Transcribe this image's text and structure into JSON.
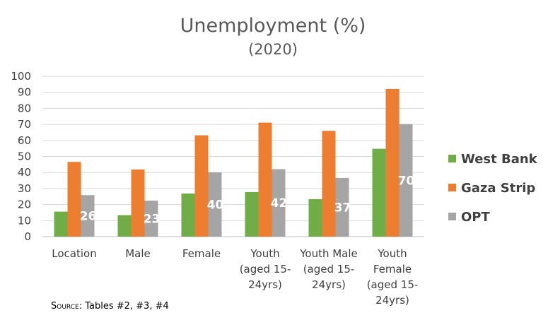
{
  "source_prefix": "Source",
  "source_rest": ": Tables #2, #3, #4",
  "chart_data": {
    "type": "bar",
    "title": "Unemployment (%)",
    "subtitle": "(2020)",
    "categories": [
      [
        "Location"
      ],
      [
        "Male"
      ],
      [
        "Female"
      ],
      [
        "Youth",
        "(aged 15-",
        "24yrs)"
      ],
      [
        "Youth Male",
        "(aged 15-",
        "24yrs)"
      ],
      [
        "Youth",
        "Female",
        "(aged 15-",
        "24yrs)"
      ]
    ],
    "series": [
      {
        "name": "West Bank",
        "color": "#70ad47",
        "values": [
          15.6,
          13.4,
          26.9,
          27.8,
          23.4,
          54.8
        ]
      },
      {
        "name": "Gaza Strip",
        "color": "#ed7d31",
        "values": [
          46.6,
          41.9,
          63.2,
          71.1,
          66.0,
          92.1
        ]
      },
      {
        "name": "OPT",
        "color": "#a5a5a5",
        "values": [
          25.9,
          22.5,
          40.1,
          42.1,
          36.6,
          70.2
        ],
        "labels": [
          "26",
          "23",
          "40",
          "42",
          "37",
          "70"
        ]
      }
    ],
    "ylim": [
      0,
      100
    ],
    "yticks": [
      0,
      10,
      20,
      30,
      40,
      50,
      60,
      70,
      80,
      90,
      100
    ],
    "grid": true,
    "legend_position": "right"
  }
}
